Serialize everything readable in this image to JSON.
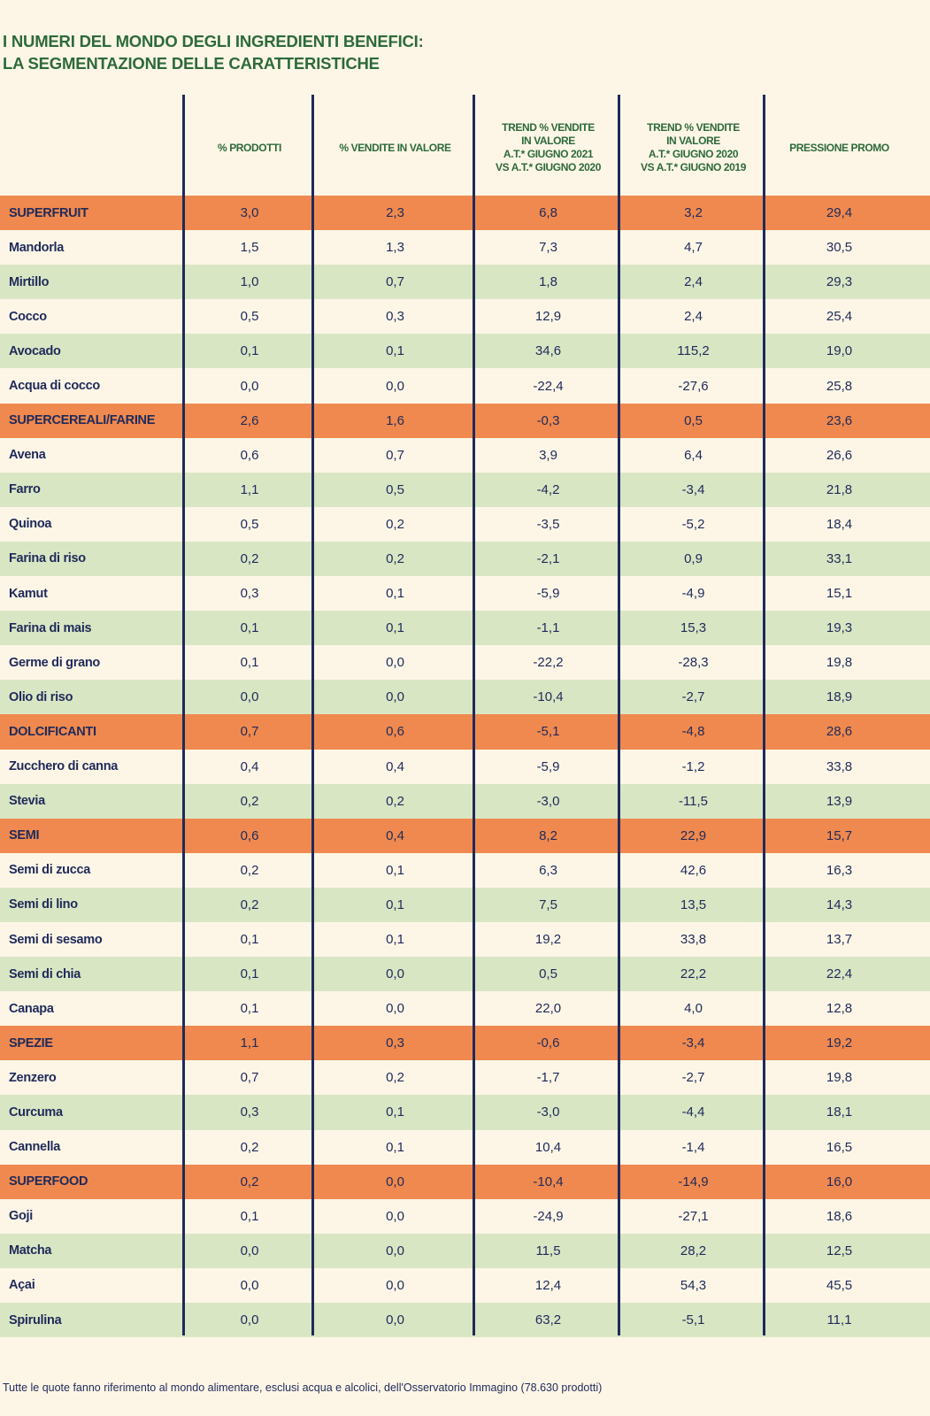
{
  "title": {
    "line1": "I NUMERI DEL MONDO DEGLI INGREDIENTI BENEFICI:",
    "line2": "LA SEGMENTAZIONE DELLE CARATTERISTICHE"
  },
  "columns": [
    "",
    "% PRODOTTI",
    "% VENDITE IN VALORE",
    "TREND % VENDITE\nIN VALORE\nA.T.* GIUGNO 2021\nVS A.T.* GIUGNO 2020",
    "TREND % VENDITE\nIN VALORE\nA.T.* GIUGNO 2020\nVS A.T.* GIUGNO 2019",
    "PRESSIONE PROMO"
  ],
  "colors": {
    "category_row": "#f0894f",
    "alt_row": "#d9e6c4",
    "background": "#fdf6e7",
    "title": "#2d6a3a",
    "text": "#1f2a5a"
  },
  "groups": [
    {
      "category": [
        "SUPERFRUIT",
        "3,0",
        "2,3",
        "6,8",
        "3,2",
        "29,4"
      ],
      "items": [
        [
          "Mandorla",
          "1,5",
          "1,3",
          "7,3",
          "4,7",
          "30,5"
        ],
        [
          "Mirtillo",
          "1,0",
          "0,7",
          "1,8",
          "2,4",
          "29,3"
        ],
        [
          "Cocco",
          "0,5",
          "0,3",
          "12,9",
          "2,4",
          "25,4"
        ],
        [
          "Avocado",
          "0,1",
          "0,1",
          "34,6",
          "115,2",
          "19,0"
        ],
        [
          "Acqua di cocco",
          "0,0",
          "0,0",
          "-22,4",
          "-27,6",
          "25,8"
        ]
      ]
    },
    {
      "category": [
        "SUPERCEREALI/FARINE",
        "2,6",
        "1,6",
        "-0,3",
        "0,5",
        "23,6"
      ],
      "items": [
        [
          "Avena",
          "0,6",
          "0,7",
          "3,9",
          "6,4",
          "26,6"
        ],
        [
          "Farro",
          "1,1",
          "0,5",
          "-4,2",
          "-3,4",
          "21,8"
        ],
        [
          "Quinoa",
          "0,5",
          "0,2",
          "-3,5",
          "-5,2",
          "18,4"
        ],
        [
          "Farina di riso",
          "0,2",
          "0,2",
          "-2,1",
          "0,9",
          "33,1"
        ],
        [
          "Kamut",
          "0,3",
          "0,1",
          "-5,9",
          "-4,9",
          "15,1"
        ],
        [
          "Farina di mais",
          "0,1",
          "0,1",
          "-1,1",
          "15,3",
          "19,3"
        ],
        [
          "Germe di grano",
          "0,1",
          "0,0",
          "-22,2",
          "-28,3",
          "19,8"
        ],
        [
          "Olio di riso",
          "0,0",
          "0,0",
          "-10,4",
          "-2,7",
          "18,9"
        ]
      ]
    },
    {
      "category": [
        "DOLCIFICANTI",
        "0,7",
        "0,6",
        "-5,1",
        "-4,8",
        "28,6"
      ],
      "items": [
        [
          "Zucchero di canna",
          "0,4",
          "0,4",
          "-5,9",
          "-1,2",
          "33,8"
        ],
        [
          "Stevia",
          "0,2",
          "0,2",
          "-3,0",
          "-11,5",
          "13,9"
        ]
      ]
    },
    {
      "category": [
        "SEMI",
        "0,6",
        "0,4",
        "8,2",
        "22,9",
        "15,7"
      ],
      "items": [
        [
          "Semi di zucca",
          "0,2",
          "0,1",
          "6,3",
          "42,6",
          "16,3"
        ],
        [
          "Semi di lino",
          "0,2",
          "0,1",
          "7,5",
          "13,5",
          "14,3"
        ],
        [
          "Semi di sesamo",
          "0,1",
          "0,1",
          "19,2",
          "33,8",
          "13,7"
        ],
        [
          "Semi di chia",
          "0,1",
          "0,0",
          "0,5",
          "22,2",
          "22,4"
        ],
        [
          "Canapa",
          "0,1",
          "0,0",
          "22,0",
          "4,0",
          "12,8"
        ]
      ]
    },
    {
      "category": [
        "SPEZIE",
        "1,1",
        "0,3",
        "-0,6",
        "-3,4",
        "19,2"
      ],
      "items": [
        [
          "Zenzero",
          "0,7",
          "0,2",
          "-1,7",
          "-2,7",
          "19,8"
        ],
        [
          "Curcuma",
          "0,3",
          "0,1",
          "-3,0",
          "-4,4",
          "18,1"
        ],
        [
          "Cannella",
          "0,2",
          "0,1",
          "10,4",
          "-1,4",
          "16,5"
        ]
      ]
    },
    {
      "category": [
        "SUPERFOOD",
        "0,2",
        "0,0",
        "-10,4",
        "-14,9",
        "16,0"
      ],
      "items": [
        [
          "Goji",
          "0,1",
          "0,0",
          "-24,9",
          "-27,1",
          "18,6"
        ],
        [
          "Matcha",
          "0,0",
          "0,0",
          "11,5",
          "28,2",
          "12,5"
        ],
        [
          "Açai",
          "0,0",
          "0,0",
          "12,4",
          "54,3",
          "45,5"
        ],
        [
          "Spirulina",
          "0,0",
          "0,0",
          "63,2",
          "-5,1",
          "11,1"
        ]
      ]
    }
  ],
  "footnote": "Tutte le quote fanno riferimento al mondo alimentare, esclusi acqua e alcolici, dell'Osservatorio Immagino (78.630 prodotti)"
}
